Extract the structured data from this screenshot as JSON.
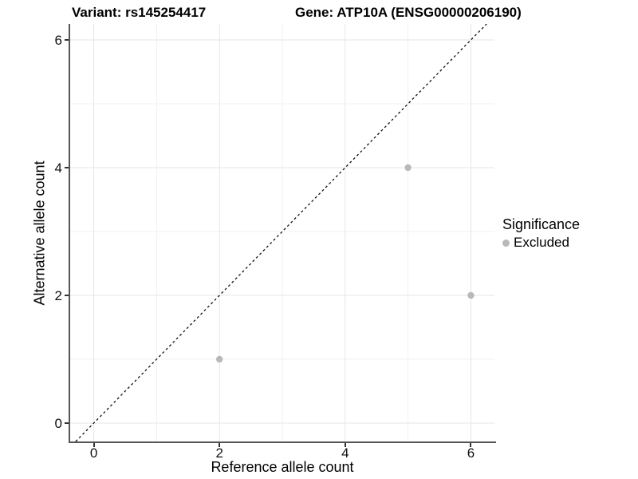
{
  "header": {
    "variant_title": "Variant: rs145254417",
    "gene_title": "Gene: ATP10A (ENSG00000206190)"
  },
  "chart_data": {
    "type": "scatter",
    "title": "Variant: rs145254417   Gene: ATP10A (ENSG00000206190)",
    "xlabel": "Reference allele count",
    "ylabel": "Alternative allele count",
    "xlim": [
      -0.375,
      6.375
    ],
    "ylim": [
      -0.2875,
      6.25
    ],
    "x_ticks": [
      0,
      2,
      4,
      6
    ],
    "y_ticks": [
      0,
      2,
      4,
      6
    ],
    "x_tick_labels": [
      "0",
      "2",
      "4",
      "6"
    ],
    "y_tick_labels": [
      "0",
      "2",
      "4",
      "6"
    ],
    "x_minor_ticks": [
      1,
      3,
      5
    ],
    "y_minor_ticks": [
      1,
      3,
      5
    ],
    "grid": true,
    "series": [
      {
        "name": "Excluded",
        "color": "#b9b9b9",
        "points": [
          {
            "x": 2,
            "y": 1
          },
          {
            "x": 5,
            "y": 4
          },
          {
            "x": 6,
            "y": 2
          }
        ]
      }
    ],
    "reference_line": {
      "type": "identity",
      "style": "dashed",
      "color": "#111111"
    },
    "legend": {
      "position": "right",
      "title": "Significance",
      "items": [
        {
          "label": "Excluded",
          "color": "#b9b9b9"
        }
      ]
    },
    "colors": {
      "grid_major": "#e6e6e6",
      "grid_minor": "#f1f1f1",
      "axis_line": "#555555",
      "tick": "#333333",
      "point": "#b9b9b9"
    }
  }
}
